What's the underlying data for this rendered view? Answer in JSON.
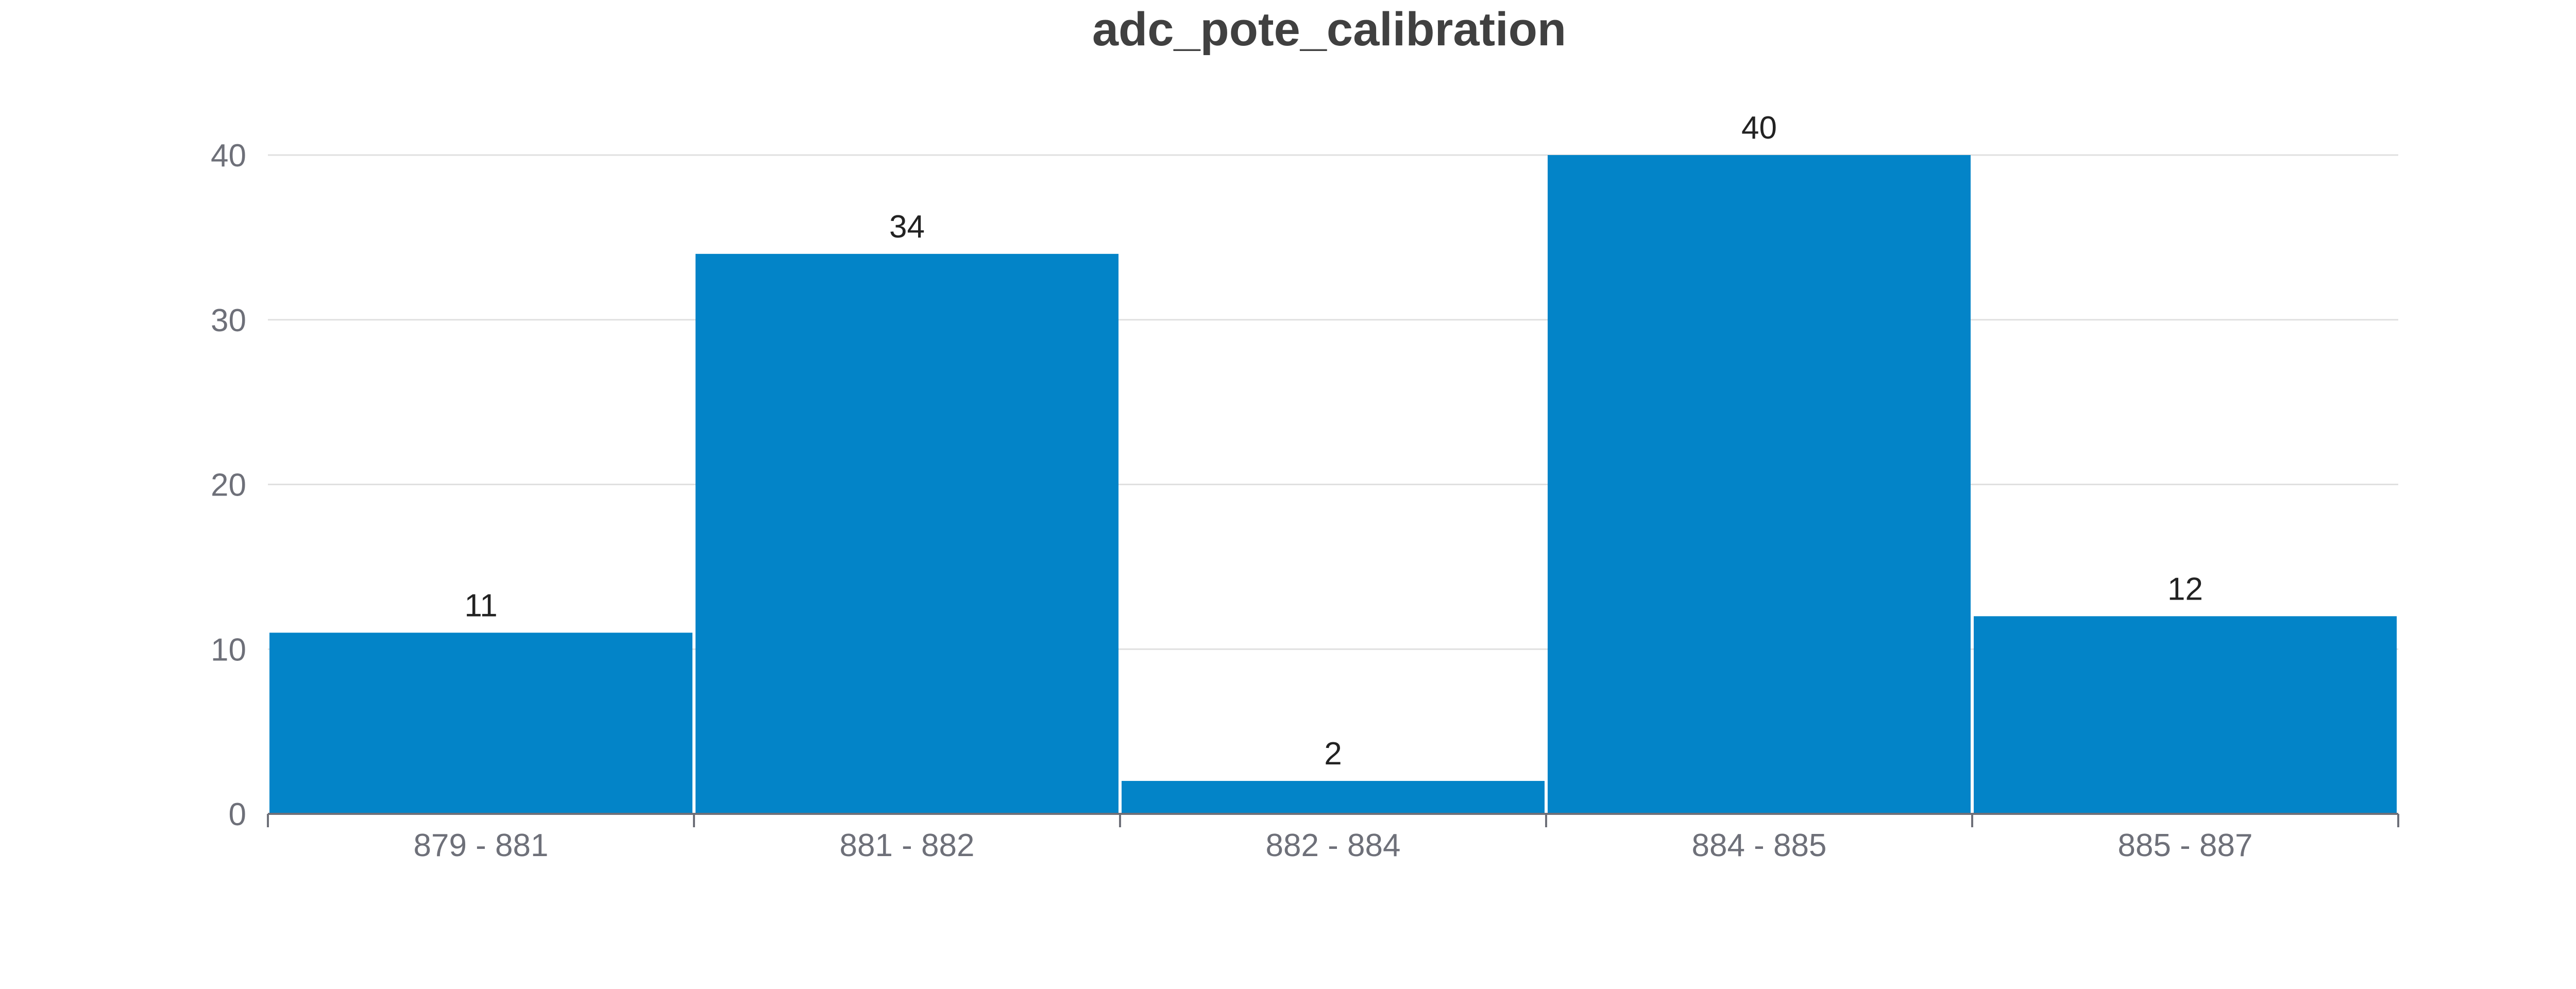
{
  "chart_data": {
    "type": "bar",
    "title": "adc_pote_calibration",
    "categories": [
      "879 - 881",
      "881 - 882",
      "882 - 884",
      "884 - 885",
      "885 - 887"
    ],
    "values": [
      11,
      34,
      2,
      40,
      12
    ],
    "ylim": [
      0,
      40
    ],
    "yticks": [
      0,
      10,
      20,
      30,
      40
    ],
    "grid": true,
    "bar_color": "#0384c8",
    "xlabel": "",
    "ylabel": ""
  }
}
